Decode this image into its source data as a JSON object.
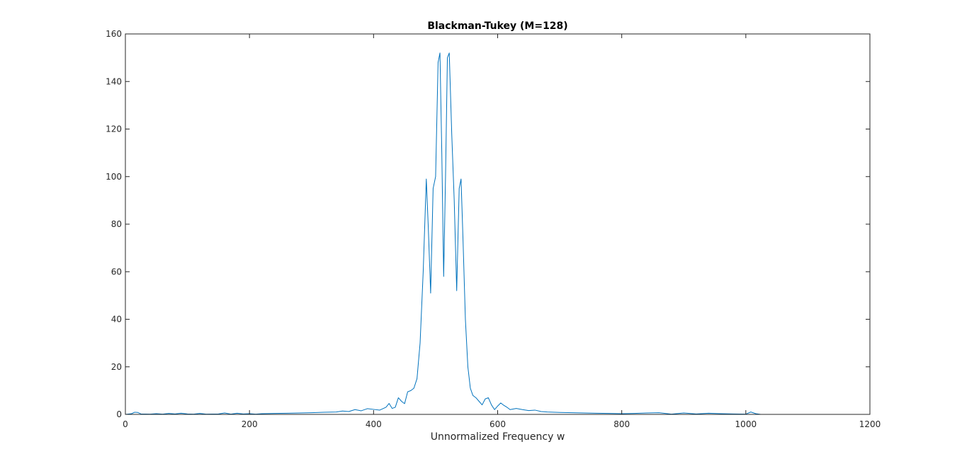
{
  "chart_data": {
    "type": "line",
    "title": "Blackman-Tukey (M=128)",
    "xlabel": "Unnormalized Frequency w",
    "ylabel": "",
    "xlim": [
      0,
      1200
    ],
    "ylim": [
      0,
      160
    ],
    "xticks": [
      0,
      200,
      400,
      600,
      800,
      1000,
      1200
    ],
    "yticks": [
      0,
      20,
      40,
      60,
      80,
      100,
      120,
      140,
      160
    ],
    "grid": false,
    "box": true,
    "line_color": "#0072bd",
    "series": [
      {
        "x": [
          0,
          10,
          15,
          20,
          25,
          40,
          50,
          60,
          70,
          80,
          90,
          100,
          110,
          120,
          130,
          150,
          160,
          170,
          180,
          190,
          200,
          210,
          220,
          240,
          260,
          280,
          300,
          320,
          340,
          350,
          360,
          370,
          380,
          390,
          400,
          410,
          420,
          425,
          430,
          435,
          440,
          445,
          450,
          455,
          460,
          465,
          470,
          475,
          480,
          485,
          488,
          492,
          496,
          500,
          504,
          507,
          510,
          513,
          516,
          519,
          522,
          526,
          530,
          534,
          538,
          541,
          544,
          548,
          552,
          556,
          560,
          565,
          570,
          575,
          580,
          585,
          590,
          595,
          600,
          605,
          610,
          615,
          620,
          630,
          640,
          650,
          660,
          670,
          680,
          700,
          720,
          740,
          760,
          780,
          800,
          820,
          840,
          860,
          880,
          900,
          920,
          940,
          960,
          980,
          1000,
          1008,
          1016,
          1024
        ],
        "y": [
          0,
          0.3,
          0.9,
          0.8,
          0.2,
          0.1,
          0.3,
          0.1,
          0.4,
          0.2,
          0.5,
          0.2,
          0.1,
          0.4,
          0.1,
          0.2,
          0.6,
          0.1,
          0.5,
          0.2,
          0.3,
          0.1,
          0.3,
          0.4,
          0.5,
          0.6,
          0.7,
          0.9,
          1.0,
          1.4,
          1.2,
          2.0,
          1.5,
          2.4,
          2.1,
          1.8,
          3.0,
          4.6,
          2.5,
          3.0,
          7.0,
          5.5,
          4.5,
          9.5,
          10,
          11,
          15,
          30,
          60,
          99,
          80,
          51,
          95,
          100,
          148,
          152,
          110,
          58,
          100,
          150,
          152,
          118,
          90,
          52,
          95,
          99,
          75,
          40,
          20,
          11,
          8,
          7,
          5.5,
          4.0,
          6.5,
          7.0,
          4.0,
          2.0,
          3.5,
          4.8,
          3.8,
          3.0,
          2.0,
          2.5,
          2.0,
          1.6,
          1.8,
          1.2,
          1.0,
          0.8,
          0.7,
          0.6,
          0.5,
          0.4,
          0.3,
          0.4,
          0.6,
          0.7,
          0.1,
          0.6,
          0.2,
          0.5,
          0.3,
          0.2,
          0.1,
          1.0,
          0.3,
          0
        ]
      }
    ]
  }
}
